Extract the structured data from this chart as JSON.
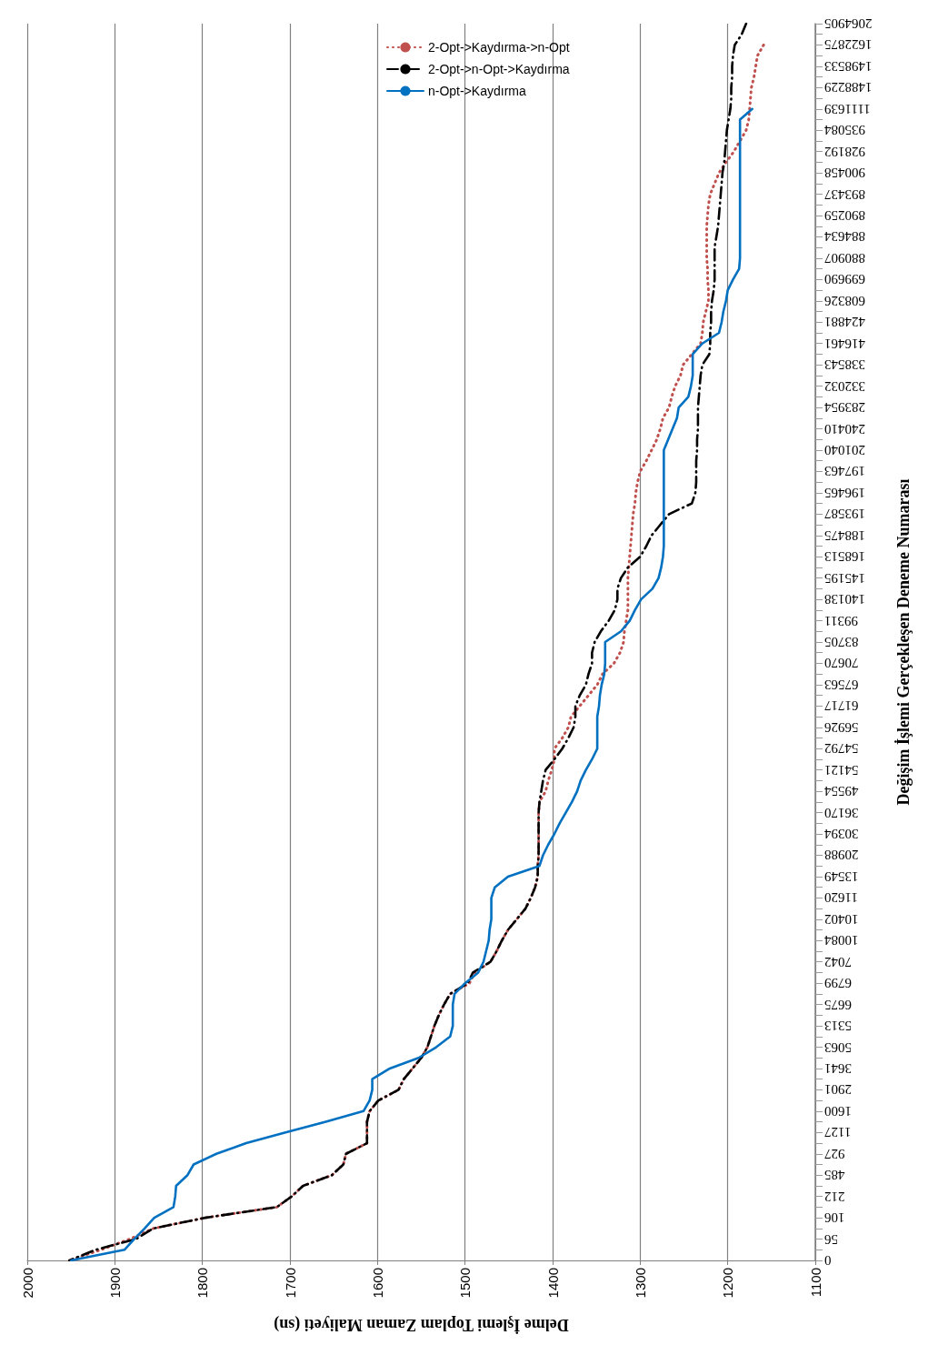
{
  "chart_data": {
    "type": "line",
    "orientation": "horizontal",
    "xlabel": "Delme İşlemi Toplam Zaman Maliyeti (sn)",
    "ylabel": "Değişim İşlemi Gerçekleşen Deneme Numarası",
    "categories": [
      "2064905",
      null,
      "1622875",
      null,
      "1498533",
      null,
      "1488229",
      null,
      "1111639",
      null,
      "935084",
      null,
      "928192",
      null,
      "900458",
      null,
      "893437",
      null,
      "890259",
      null,
      "884634",
      null,
      "880907",
      null,
      "699690",
      null,
      "608326",
      null,
      "424881",
      null,
      "416461",
      null,
      "338543",
      null,
      "332032",
      null,
      "283954",
      null,
      "240410",
      null,
      "201040",
      null,
      "197463",
      null,
      "196465",
      null,
      "193587",
      null,
      "188475",
      null,
      "168513",
      null,
      "145195",
      null,
      "140138",
      null,
      "99311",
      null,
      "83705",
      null,
      "70670",
      null,
      "67563",
      null,
      "61717",
      null,
      "56926",
      null,
      "54792",
      null,
      "54121",
      null,
      "49554",
      null,
      "36170",
      null,
      "30394",
      null,
      "20988",
      null,
      "13549",
      null,
      "11620",
      null,
      "10402",
      null,
      "10084",
      null,
      "7042",
      null,
      "6799",
      null,
      "6675",
      null,
      "5313",
      null,
      "5063",
      null,
      "3641",
      null,
      "2901",
      null,
      "1600",
      null,
      "1127",
      null,
      "927",
      null,
      "485",
      null,
      "212",
      null,
      "106",
      null,
      "56",
      null,
      "0"
    ],
    "series": [
      {
        "name": "2-Opt->Kaydırma->n-Opt",
        "color": "#c0504d",
        "line_style": "dotted",
        "values": [
          null,
          null,
          1159,
          1166,
          1168,
          1170,
          1173,
          1174,
          1175,
          1176,
          1179,
          1186,
          1193,
          1202,
          1210,
          1215,
          1220,
          1222,
          1223,
          1224,
          1224,
          1224,
          1224,
          1223,
          1223,
          1222,
          1222,
          1225,
          1228,
          1229,
          1231,
          1241,
          1251,
          1254,
          1260,
          1264,
          1267,
          1274,
          1277,
          1281,
          1287,
          1293,
          1300,
          1303,
          1305,
          1306,
          1308,
          1309,
          1310,
          1311,
          1312,
          1313,
          1314,
          1314,
          1314,
          1314,
          1316,
          1318,
          1319,
          1323,
          1330,
          1343,
          1349,
          1359,
          1369,
          1379,
          1382,
          1389,
          1398,
          1398,
          1401,
          1405,
          1408,
          1415,
          1416,
          1416,
          1416,
          1416,
          1416,
          1417,
          1417,
          1420,
          1425,
          1431,
          1441,
          1451,
          1458,
          1464,
          1471,
          1489,
          1495,
          1517,
          1524,
          1530,
          1535,
          1539,
          1543,
          1550,
          1560,
          1570,
          1576,
          1599,
          1609,
          1612,
          1612,
          1612,
          1636,
          1639,
          1652,
          1685,
          1698,
          1715,
          1797,
          1856,
          1883,
          1916,
          1952
        ]
      },
      {
        "name": "2-Opt->n-Opt->Kaydırma",
        "color": "#000000",
        "line_style": "dashed",
        "values": [
          1179,
          1184,
          1192,
          1194,
          1195,
          1195,
          1196,
          1196,
          1197,
          1199,
          1201,
          1202,
          1203,
          1204,
          1206,
          1207,
          1208,
          1209,
          1210,
          1211,
          1213,
          1215,
          1215,
          1215,
          1215,
          1216,
          1218,
          1219,
          1219,
          1220,
          1220,
          1221,
          1229,
          1231,
          1232,
          1233,
          1234,
          1234,
          1234,
          1235,
          1235,
          1236,
          1236,
          1236,
          1237,
          1241,
          1267,
          1277,
          1287,
          1293,
          1300,
          1314,
          1322,
          1326,
          1326,
          1329,
          1336,
          1345,
          1352,
          1355,
          1355,
          1359,
          1362,
          1369,
          1374,
          1374,
          1376,
          1382,
          1389,
          1398,
          1408,
          1411,
          1413,
          1415,
          1416,
          1416,
          1416,
          1416,
          1416,
          1417,
          1417,
          1420,
          1425,
          1431,
          1441,
          1451,
          1458,
          1464,
          1471,
          1491,
          1497,
          1517,
          1524,
          1530,
          1535,
          1539,
          1543,
          1550,
          1560,
          1570,
          1576,
          1599,
          1609,
          1612,
          1612,
          1612,
          1636,
          1639,
          1652,
          1685,
          1698,
          1715,
          1797,
          1856,
          1876,
          1922,
          1952
        ]
      },
      {
        "name": "n-Opt->Kaydırma",
        "color": "#0070c0",
        "line_style": "solid",
        "values": [
          null,
          null,
          null,
          null,
          null,
          null,
          null,
          null,
          1172,
          1186,
          1186,
          1186,
          1186,
          1186,
          1186,
          1186,
          1186,
          1186,
          1186,
          1186,
          1186,
          1186,
          1186,
          1187,
          1194,
          1200,
          1202,
          1205,
          1207,
          1210,
          1229,
          1240,
          1240,
          1240,
          1242,
          1245,
          1256,
          1258,
          1263,
          1268,
          1273,
          1273,
          1273,
          1273,
          1273,
          1273,
          1273,
          1273,
          1273,
          1273,
          1274,
          1276,
          1279,
          1286,
          1299,
          1306,
          1312,
          1322,
          1340,
          1340,
          1340,
          1341,
          1344,
          1346,
          1347,
          1349,
          1349,
          1349,
          1349,
          1355,
          1362,
          1368,
          1372,
          1378,
          1385,
          1392,
          1398,
          1405,
          1411,
          1415,
          1451,
          1466,
          1470,
          1470,
          1470,
          1472,
          1473,
          1476,
          1479,
          1485,
          1500,
          1512,
          1514,
          1514,
          1514,
          1517,
          1533,
          1553,
          1586,
          1606,
          1606,
          1609,
          1616,
          1659,
          1705,
          1750,
          1784,
          1810,
          1817,
          1830,
          1831,
          1833,
          1855,
          1866,
          1878,
          1889,
          1950
        ]
      }
    ],
    "xlim": [
      2000,
      1100
    ],
    "xticks": [
      2000,
      1900,
      1800,
      1700,
      1600,
      1500,
      1400,
      1300,
      1200,
      1100
    ],
    "grid": "x",
    "legend": "top",
    "marker": "none"
  }
}
